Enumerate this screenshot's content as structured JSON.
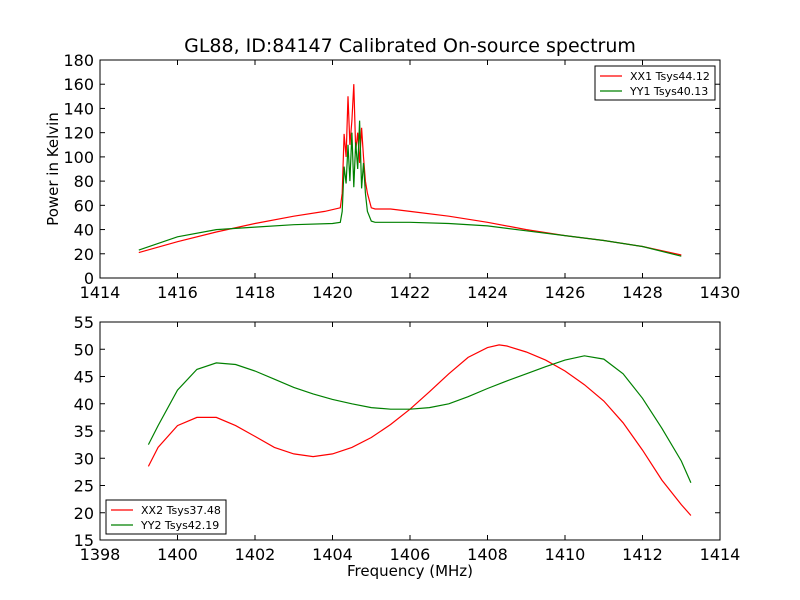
{
  "chart_data": [
    {
      "type": "line",
      "title": "GL88, ID:84147 Calibrated On-source spectrum",
      "xlabel": "",
      "ylabel": "Power in Kelvin",
      "xlim": [
        1414,
        1430
      ],
      "ylim": [
        0,
        180
      ],
      "xticks": [
        1414,
        1416,
        1418,
        1420,
        1422,
        1424,
        1426,
        1428,
        1430
      ],
      "yticks": [
        0,
        20,
        40,
        60,
        80,
        100,
        120,
        140,
        160,
        180
      ],
      "grid": false,
      "legend": "top-right",
      "series": [
        {
          "name": "XX1 Tsys44.12",
          "color": "#ff0000",
          "x": [
            1415.0,
            1416.0,
            1417.0,
            1418.0,
            1419.0,
            1419.8,
            1420.2,
            1420.25,
            1420.3,
            1420.35,
            1420.4,
            1420.45,
            1420.5,
            1420.55,
            1420.6,
            1420.65,
            1420.7,
            1420.75,
            1420.8,
            1420.85,
            1420.9,
            1421.0,
            1421.1,
            1421.5,
            1422.0,
            1423.0,
            1424.0,
            1425.0,
            1426.0,
            1427.0,
            1428.0,
            1429.0
          ],
          "y": [
            21,
            30,
            38,
            45,
            51,
            55,
            58,
            70,
            119,
            100,
            150,
            110,
            130,
            160,
            105,
            120,
            95,
            124,
            100,
            80,
            70,
            58,
            57,
            57,
            55,
            51,
            46,
            40,
            35,
            31,
            26,
            19
          ]
        },
        {
          "name": "YY1 Tsys40.13",
          "color": "#008000",
          "x": [
            1415.0,
            1416.0,
            1417.0,
            1418.0,
            1419.0,
            1420.0,
            1420.2,
            1420.25,
            1420.3,
            1420.35,
            1420.4,
            1420.45,
            1420.5,
            1420.55,
            1420.6,
            1420.65,
            1420.7,
            1420.75,
            1420.8,
            1420.85,
            1420.9,
            1421.0,
            1421.1,
            1421.5,
            1422.0,
            1423.0,
            1424.0,
            1425.0,
            1426.0,
            1427.0,
            1428.0,
            1429.0
          ],
          "y": [
            23,
            34,
            40,
            42,
            44,
            45,
            46,
            55,
            92,
            78,
            110,
            80,
            120,
            75,
            112,
            90,
            130,
            74,
            95,
            70,
            55,
            47,
            46,
            46,
            46,
            45,
            43,
            39,
            35,
            31,
            26,
            18
          ]
        }
      ]
    },
    {
      "type": "line",
      "title": "",
      "xlabel": "Frequency (MHz)",
      "ylabel": "",
      "xlim": [
        1398,
        1414
      ],
      "ylim": [
        15,
        55
      ],
      "xticks": [
        1398,
        1400,
        1402,
        1404,
        1406,
        1408,
        1410,
        1412,
        1414
      ],
      "yticks": [
        15,
        20,
        25,
        30,
        35,
        40,
        45,
        50,
        55
      ],
      "grid": false,
      "legend": "bottom-left",
      "series": [
        {
          "name": "XX2 Tsys37.48",
          "color": "#ff0000",
          "x": [
            1399.25,
            1399.5,
            1400.0,
            1400.5,
            1401.0,
            1401.5,
            1402.0,
            1402.5,
            1403.0,
            1403.5,
            1404.0,
            1404.5,
            1405.0,
            1405.5,
            1406.0,
            1406.5,
            1407.0,
            1407.5,
            1408.0,
            1408.3,
            1408.5,
            1409.0,
            1409.5,
            1410.0,
            1410.5,
            1411.0,
            1411.5,
            1412.0,
            1412.5,
            1413.0,
            1413.25
          ],
          "y": [
            28.5,
            32,
            36,
            37.5,
            37.5,
            36,
            34,
            32,
            30.8,
            30.3,
            30.8,
            32,
            33.8,
            36.2,
            39,
            42.2,
            45.5,
            48.5,
            50.3,
            50.8,
            50.6,
            49.5,
            48,
            46,
            43.5,
            40.5,
            36.5,
            31.5,
            26,
            21.5,
            19.5
          ]
        },
        {
          "name": "YY2 Tsys42.19",
          "color": "#008000",
          "x": [
            1399.25,
            1399.5,
            1400.0,
            1400.5,
            1401.0,
            1401.5,
            1402.0,
            1402.5,
            1403.0,
            1403.5,
            1404.0,
            1404.5,
            1405.0,
            1405.5,
            1406.0,
            1406.5,
            1407.0,
            1407.5,
            1408.0,
            1408.5,
            1409.0,
            1409.5,
            1410.0,
            1410.5,
            1411.0,
            1411.5,
            1412.0,
            1412.5,
            1413.0,
            1413.25
          ],
          "y": [
            32.5,
            36,
            42.5,
            46.3,
            47.5,
            47.2,
            46,
            44.5,
            43,
            41.8,
            40.8,
            40,
            39.3,
            39,
            39,
            39.3,
            40,
            41.3,
            42.8,
            44.2,
            45.5,
            46.8,
            48,
            48.8,
            48.2,
            45.5,
            41,
            35.5,
            29.5,
            25.5
          ]
        }
      ]
    }
  ]
}
